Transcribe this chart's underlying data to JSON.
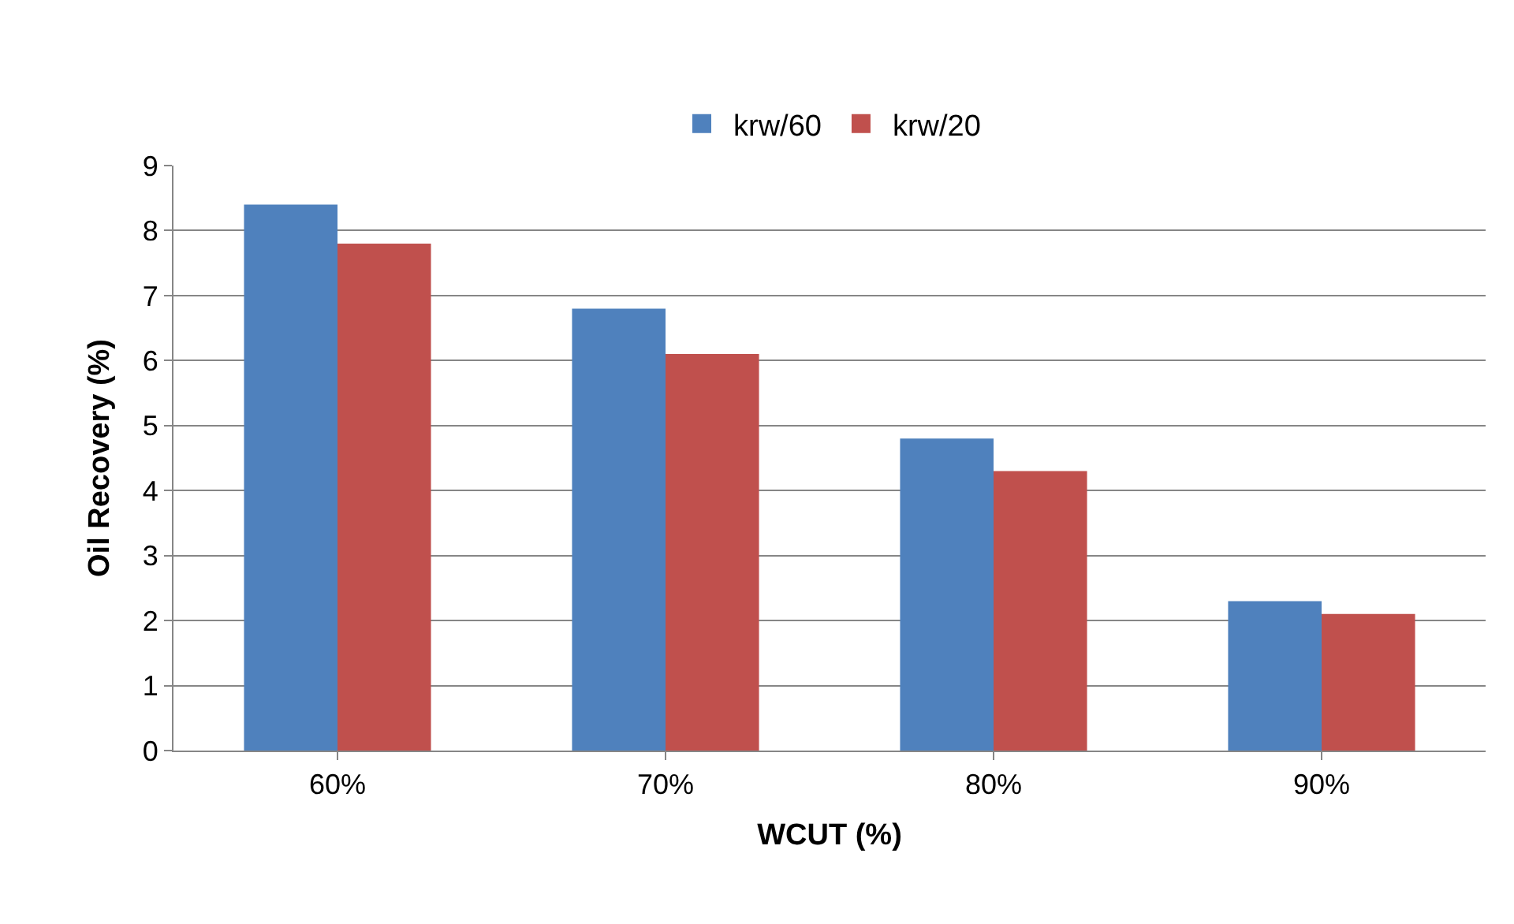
{
  "chart_data": {
    "type": "bar",
    "xlabel": "WCUT (%)",
    "ylabel": "Oil Recovery (%)",
    "categories": [
      "60%",
      "70%",
      "80%",
      "90%"
    ],
    "series": [
      {
        "name": "krw/60",
        "color": "#4f81bd",
        "values": [
          8.4,
          6.8,
          4.8,
          2.3
        ]
      },
      {
        "name": "krw/20",
        "color": "#c0504d",
        "values": [
          7.8,
          6.1,
          4.3,
          2.1
        ]
      }
    ],
    "ylim": [
      0,
      9
    ],
    "yticks": [
      0,
      1,
      2,
      3,
      4,
      5,
      6,
      7,
      8,
      9
    ],
    "grid": "y",
    "legend": "top"
  }
}
